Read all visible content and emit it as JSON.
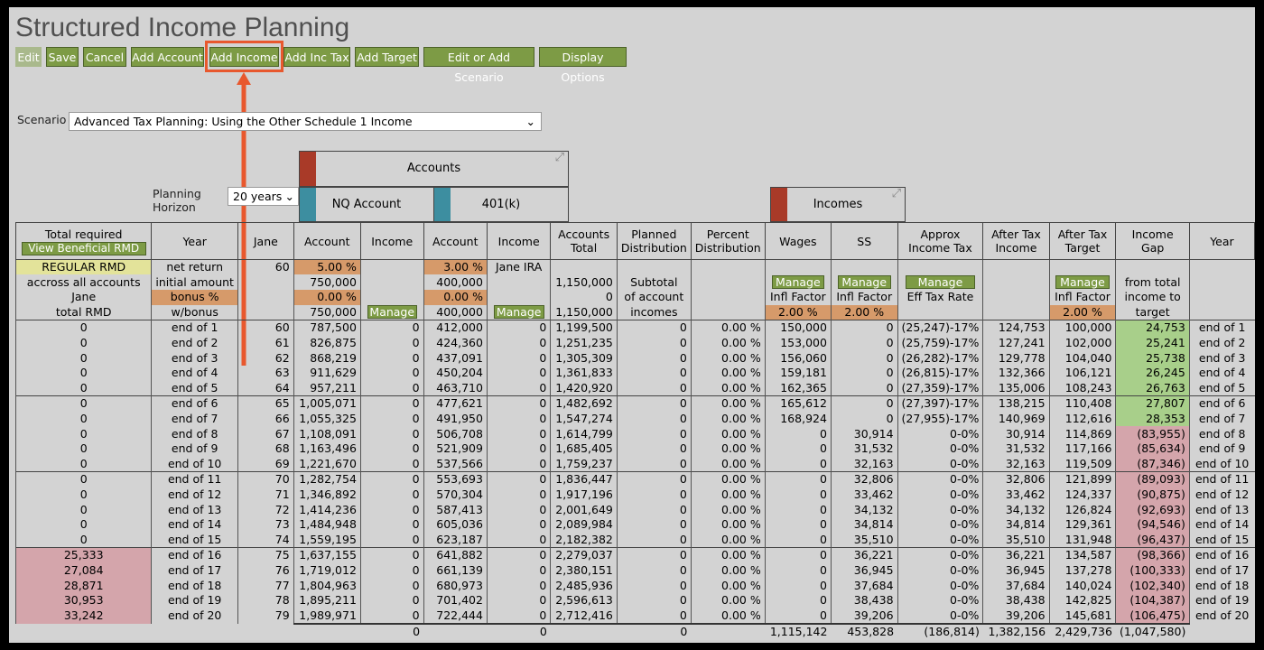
{
  "header": {
    "title": "Structured Income Planning"
  },
  "toolbar": [
    "Edit",
    "Save",
    "Cancel",
    "Add Account",
    "Add Income",
    "Add Inc Tax",
    "Add Target",
    "Edit or Add Scenario",
    "Display Options"
  ],
  "scenario": {
    "label": "Scenario",
    "value": "Advanced Tax Planning: Using the Other Schedule 1 Income"
  },
  "horizon": {
    "label": "Planning Horizon",
    "value": "20 years"
  },
  "groups": {
    "accounts": "Accounts",
    "nq": "NQ Account",
    "k401": "401(k)",
    "incomes": "Incomes"
  },
  "table": {
    "columns": [
      "Total required",
      "Year",
      "Jane",
      "Account",
      "Income",
      "Account",
      "Income",
      "Accounts Total",
      "Planned Distribution",
      "Percent Distribution",
      "Wages",
      "SS",
      "Approx Income Tax",
      "After Tax Income",
      "After Tax Target",
      "Income Gap",
      "Year"
    ],
    "view_rmd": "View Beneficial RMD",
    "info_rows": [
      [
        "REGULAR RMD",
        "net return",
        "60",
        "5.00 %",
        null,
        "3.00 %",
        "Jane IRA",
        null,
        null,
        null,
        null,
        null,
        null,
        null,
        null,
        null,
        null
      ],
      [
        "accross all accounts",
        "initial amount",
        null,
        "750,000",
        null,
        "400,000",
        null,
        "1,150,000",
        "Subtotal",
        null,
        "Manage",
        "Manage",
        "Manage",
        null,
        "Manage",
        "from total",
        null
      ],
      [
        "Jane",
        "bonus %",
        null,
        "0.00 %",
        null,
        "0.00 %",
        null,
        "0",
        "of account",
        null,
        "Infl Factor",
        "Infl Factor",
        "Eff Tax Rate",
        null,
        "Infl Factor",
        "income to",
        null
      ],
      [
        "total RMD",
        "w/bonus",
        null,
        "750,000",
        "Manage",
        "400,000",
        "Manage",
        "1,150,000",
        "incomes",
        null,
        "2.00 %",
        "2.00 %",
        null,
        null,
        "2.00 %",
        "target",
        null
      ]
    ],
    "rows": [
      [
        "0",
        "end of 1",
        "60",
        "787,500",
        "0",
        "412,000",
        "0",
        "1,199,500",
        "0",
        "0.00 %",
        "150,000",
        "0",
        "(25,247)-17%",
        "124,753",
        "100,000",
        "24,753",
        "end of 1"
      ],
      [
        "0",
        "end of 2",
        "61",
        "826,875",
        "0",
        "424,360",
        "0",
        "1,251,235",
        "0",
        "0.00 %",
        "153,000",
        "0",
        "(25,759)-17%",
        "127,241",
        "102,000",
        "25,241",
        "end of 2"
      ],
      [
        "0",
        "end of 3",
        "62",
        "868,219",
        "0",
        "437,091",
        "0",
        "1,305,309",
        "0",
        "0.00 %",
        "156,060",
        "0",
        "(26,282)-17%",
        "129,778",
        "104,040",
        "25,738",
        "end of 3"
      ],
      [
        "0",
        "end of 4",
        "63",
        "911,629",
        "0",
        "450,204",
        "0",
        "1,361,833",
        "0",
        "0.00 %",
        "159,181",
        "0",
        "(26,815)-17%",
        "132,366",
        "106,121",
        "26,245",
        "end of 4"
      ],
      [
        "0",
        "end of 5",
        "64",
        "957,211",
        "0",
        "463,710",
        "0",
        "1,420,920",
        "0",
        "0.00 %",
        "162,365",
        "0",
        "(27,359)-17%",
        "135,006",
        "108,243",
        "26,763",
        "end of 5"
      ],
      [
        "0",
        "end of 6",
        "65",
        "1,005,071",
        "0",
        "477,621",
        "0",
        "1,482,692",
        "0",
        "0.00 %",
        "165,612",
        "0",
        "(27,397)-17%",
        "138,215",
        "110,408",
        "27,807",
        "end of 6"
      ],
      [
        "0",
        "end of 7",
        "66",
        "1,055,325",
        "0",
        "491,950",
        "0",
        "1,547,274",
        "0",
        "0.00 %",
        "168,924",
        "0",
        "(27,955)-17%",
        "140,969",
        "112,616",
        "28,353",
        "end of 7"
      ],
      [
        "0",
        "end of 8",
        "67",
        "1,108,091",
        "0",
        "506,708",
        "0",
        "1,614,799",
        "0",
        "0.00 %",
        "0",
        "30,914",
        "0-0%",
        "30,914",
        "114,869",
        "(83,955)",
        "end of 8"
      ],
      [
        "0",
        "end of 9",
        "68",
        "1,163,496",
        "0",
        "521,909",
        "0",
        "1,685,405",
        "0",
        "0.00 %",
        "0",
        "31,532",
        "0-0%",
        "31,532",
        "117,166",
        "(85,634)",
        "end of 9"
      ],
      [
        "0",
        "end of 10",
        "69",
        "1,221,670",
        "0",
        "537,566",
        "0",
        "1,759,237",
        "0",
        "0.00 %",
        "0",
        "32,163",
        "0-0%",
        "32,163",
        "119,509",
        "(87,346)",
        "end of 10"
      ],
      [
        "0",
        "end of 11",
        "70",
        "1,282,754",
        "0",
        "553,693",
        "0",
        "1,836,447",
        "0",
        "0.00 %",
        "0",
        "32,806",
        "0-0%",
        "32,806",
        "121,899",
        "(89,093)",
        "end of 11"
      ],
      [
        "0",
        "end of 12",
        "71",
        "1,346,892",
        "0",
        "570,304",
        "0",
        "1,917,196",
        "0",
        "0.00 %",
        "0",
        "33,462",
        "0-0%",
        "33,462",
        "124,337",
        "(90,875)",
        "end of 12"
      ],
      [
        "0",
        "end of 13",
        "72",
        "1,414,236",
        "0",
        "587,413",
        "0",
        "2,001,649",
        "0",
        "0.00 %",
        "0",
        "34,132",
        "0-0%",
        "34,132",
        "126,824",
        "(92,693)",
        "end of 13"
      ],
      [
        "0",
        "end of 14",
        "73",
        "1,484,948",
        "0",
        "605,036",
        "0",
        "2,089,984",
        "0",
        "0.00 %",
        "0",
        "34,814",
        "0-0%",
        "34,814",
        "129,361",
        "(94,546)",
        "end of 14"
      ],
      [
        "0",
        "end of 15",
        "74",
        "1,559,195",
        "0",
        "623,187",
        "0",
        "2,182,382",
        "0",
        "0.00 %",
        "0",
        "35,510",
        "0-0%",
        "35,510",
        "131,948",
        "(96,437)",
        "end of 15"
      ],
      [
        "25,333",
        "end of 16",
        "75",
        "1,637,155",
        "0",
        "641,882",
        "0",
        "2,279,037",
        "0",
        "0.00 %",
        "0",
        "36,221",
        "0-0%",
        "36,221",
        "134,587",
        "(98,366)",
        "end of 16"
      ],
      [
        "27,084",
        "end of 17",
        "76",
        "1,719,012",
        "0",
        "661,139",
        "0",
        "2,380,151",
        "0",
        "0.00 %",
        "0",
        "36,945",
        "0-0%",
        "36,945",
        "137,278",
        "(100,333)",
        "end of 17"
      ],
      [
        "28,871",
        "end of 18",
        "77",
        "1,804,963",
        "0",
        "680,973",
        "0",
        "2,485,936",
        "0",
        "0.00 %",
        "0",
        "37,684",
        "0-0%",
        "37,684",
        "140,024",
        "(102,340)",
        "end of 18"
      ],
      [
        "30,953",
        "end of 19",
        "78",
        "1,895,211",
        "0",
        "701,402",
        "0",
        "2,596,613",
        "0",
        "0.00 %",
        "0",
        "38,438",
        "0-0%",
        "38,438",
        "142,825",
        "(104,387)",
        "end of 19"
      ],
      [
        "33,242",
        "end of 20",
        "79",
        "1,989,971",
        "0",
        "722,444",
        "0",
        "2,712,416",
        "0",
        "0.00 %",
        "0",
        "39,206",
        "0-0%",
        "39,206",
        "145,681",
        "(106,475)",
        "end of 20"
      ]
    ],
    "totals": [
      null,
      null,
      null,
      null,
      "0",
      null,
      "0",
      null,
      "0",
      null,
      "1,115,142",
      "453,828",
      "(186,814)",
      "1,382,156",
      "2,429,736",
      "(1,047,580)",
      null
    ]
  }
}
